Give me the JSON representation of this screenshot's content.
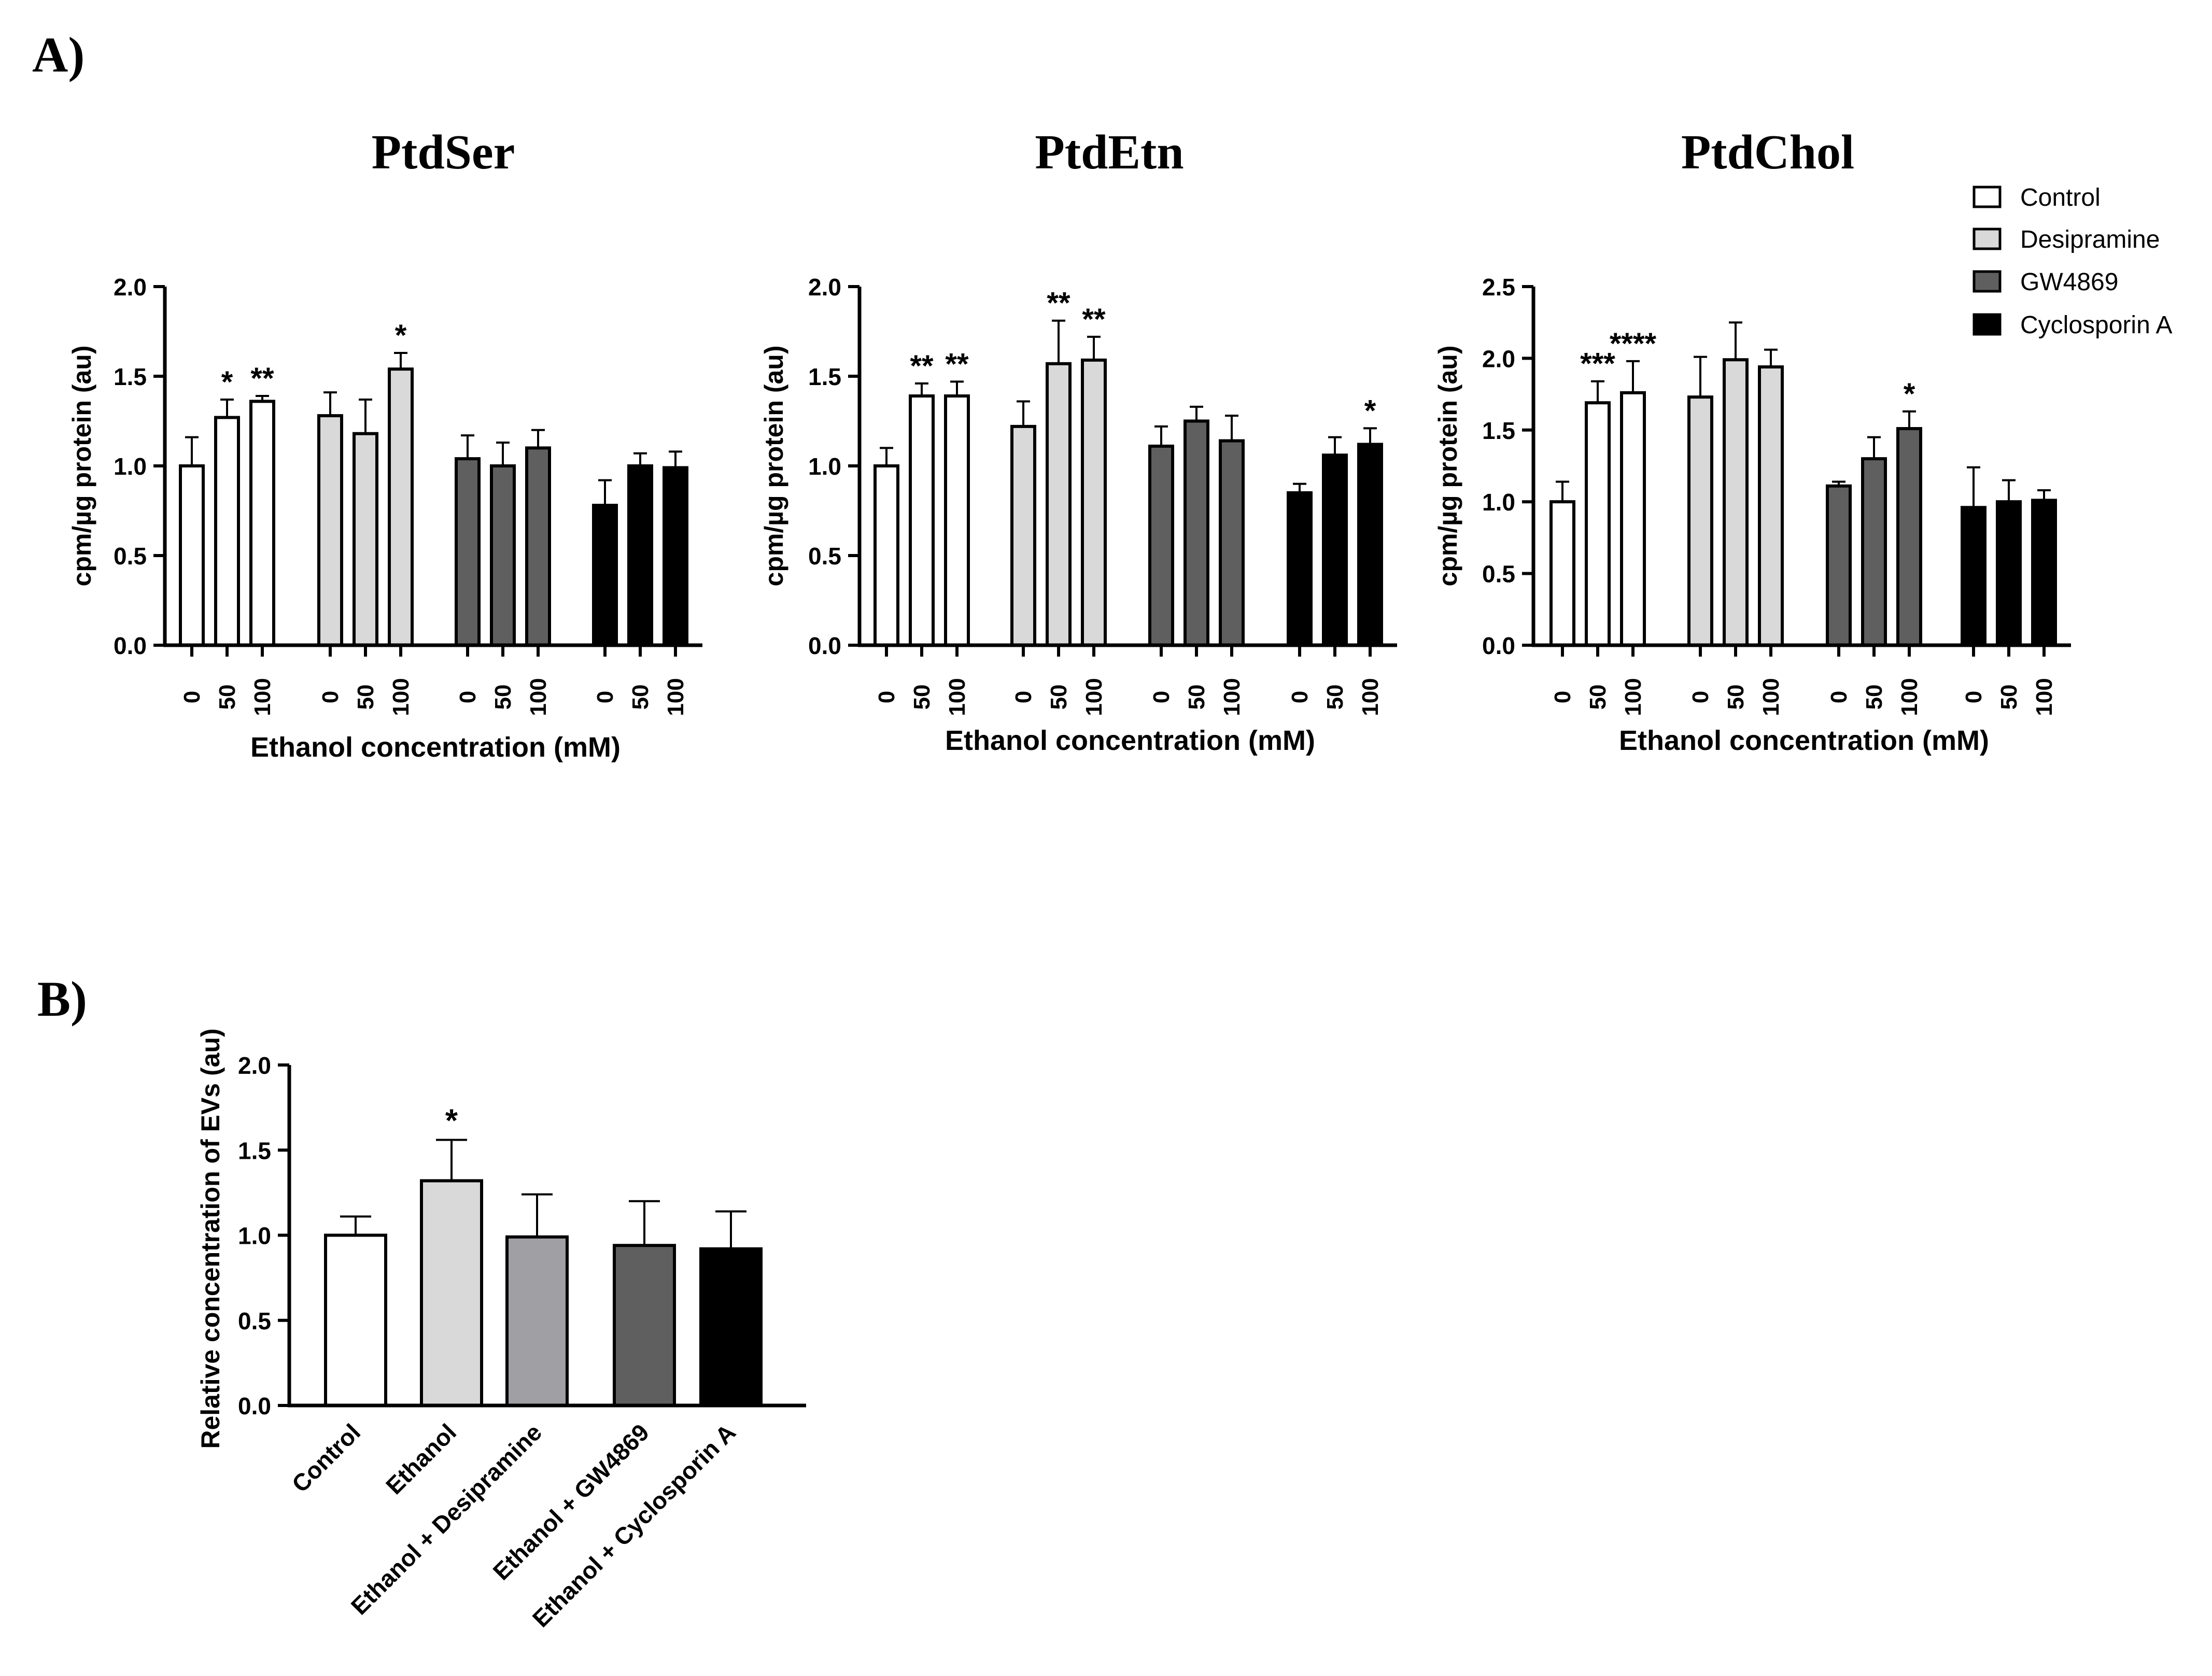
{
  "figure": {
    "panel_a_label": "A)",
    "panel_b_label": "B)"
  },
  "legend": {
    "items": [
      {
        "label": "Control",
        "color": "#ffffff"
      },
      {
        "label": "Desipramine",
        "color": "#d9d9d9"
      },
      {
        "label": "GW4869",
        "color": "#5f5f5f"
      },
      {
        "label": "Cyclosporin A",
        "color": "#000000"
      }
    ]
  },
  "chart_data": [
    {
      "type": "bar",
      "panel": "A",
      "title": "PtdSer",
      "xlabel": "Ethanol concentration (mM)",
      "ylabel": "cpm/µg protein (au)",
      "ylim": [
        0,
        2.0
      ],
      "yticks": [
        "0.0",
        "0.5",
        "1.0",
        "1.5",
        "2.0"
      ],
      "categories": [
        "0",
        "50",
        "100"
      ],
      "series": [
        {
          "name": "Control",
          "values": [
            1.0,
            1.27,
            1.36
          ],
          "errors": [
            0.16,
            0.1,
            0.03
          ],
          "stars": [
            "",
            "*",
            "**"
          ]
        },
        {
          "name": "Desipramine",
          "values": [
            1.28,
            1.18,
            1.54
          ],
          "errors": [
            0.13,
            0.19,
            0.09
          ],
          "stars": [
            "",
            "",
            "*"
          ]
        },
        {
          "name": "GW4869",
          "values": [
            1.04,
            1.0,
            1.1
          ],
          "errors": [
            0.13,
            0.13,
            0.1
          ],
          "stars": [
            "",
            "",
            ""
          ]
        },
        {
          "name": "Cyclosporin A",
          "values": [
            0.78,
            1.0,
            0.99
          ],
          "errors": [
            0.14,
            0.07,
            0.09
          ],
          "stars": [
            "",
            "",
            ""
          ]
        }
      ]
    },
    {
      "type": "bar",
      "panel": "A",
      "title": "PtdEtn",
      "xlabel": "Ethanol concentration (mM)",
      "ylabel": "cpm/µg protein (au)",
      "ylim": [
        0,
        2.0
      ],
      "yticks": [
        "0.0",
        "0.5",
        "1.0",
        "1.5",
        "2.0"
      ],
      "categories": [
        "0",
        "50",
        "100"
      ],
      "series": [
        {
          "name": "Control",
          "values": [
            1.0,
            1.39,
            1.39
          ],
          "errors": [
            0.1,
            0.07,
            0.08
          ],
          "stars": [
            "",
            "**",
            "**"
          ]
        },
        {
          "name": "Desipramine",
          "values": [
            1.22,
            1.57,
            1.59
          ],
          "errors": [
            0.14,
            0.24,
            0.13
          ],
          "stars": [
            "",
            "**",
            "**"
          ]
        },
        {
          "name": "GW4869",
          "values": [
            1.11,
            1.25,
            1.14
          ],
          "errors": [
            0.11,
            0.08,
            0.14
          ],
          "stars": [
            "",
            "",
            ""
          ]
        },
        {
          "name": "Cyclosporin A",
          "values": [
            0.85,
            1.06,
            1.12
          ],
          "errors": [
            0.05,
            0.1,
            0.09
          ],
          "stars": [
            "",
            "",
            "*"
          ]
        }
      ]
    },
    {
      "type": "bar",
      "panel": "A",
      "title": "PtdChol",
      "xlabel": "Ethanol concentration (mM)",
      "ylabel": "cpm/µg protein (au)",
      "ylim": [
        0,
        2.5
      ],
      "yticks": [
        "0.0",
        "0.5",
        "1.0",
        "1.5",
        "2.0",
        "2.5"
      ],
      "categories": [
        "0",
        "50",
        "100"
      ],
      "series": [
        {
          "name": "Control",
          "values": [
            1.0,
            1.69,
            1.76
          ],
          "errors": [
            0.14,
            0.15,
            0.22
          ],
          "stars": [
            "",
            "***",
            "****"
          ]
        },
        {
          "name": "Desipramine",
          "values": [
            1.73,
            1.99,
            1.94
          ],
          "errors": [
            0.28,
            0.26,
            0.12
          ],
          "stars": [
            "",
            "",
            ""
          ]
        },
        {
          "name": "GW4869",
          "values": [
            1.11,
            1.3,
            1.51
          ],
          "errors": [
            0.03,
            0.15,
            0.12
          ],
          "stars": [
            "",
            "",
            "*"
          ]
        },
        {
          "name": "Cyclosporin A",
          "values": [
            0.96,
            1.0,
            1.01
          ],
          "errors": [
            0.28,
            0.15,
            0.07
          ],
          "stars": [
            "",
            "",
            ""
          ]
        }
      ]
    },
    {
      "type": "bar",
      "panel": "B",
      "title": "",
      "xlabel": "",
      "ylabel": "Relative concentration of EVs (au)",
      "ylim": [
        0,
        2.0
      ],
      "yticks": [
        "0.0",
        "0.5",
        "1.0",
        "1.5",
        "2.0"
      ],
      "categories": [
        "Control",
        "Ethanol",
        "Ethanol + Desipramine",
        "Ethanol + GW4869",
        "Ethanol + Cyclosporin A"
      ],
      "values": [
        1.0,
        1.32,
        0.99,
        0.94,
        0.92
      ],
      "errors": [
        0.11,
        0.24,
        0.25,
        0.26,
        0.22
      ],
      "colors": [
        "#ffffff",
        "#d9d9d9",
        "#a0a0a4",
        "#5f5f5f",
        "#000000"
      ],
      "stars": [
        "",
        "*",
        "",
        "",
        ""
      ]
    }
  ]
}
